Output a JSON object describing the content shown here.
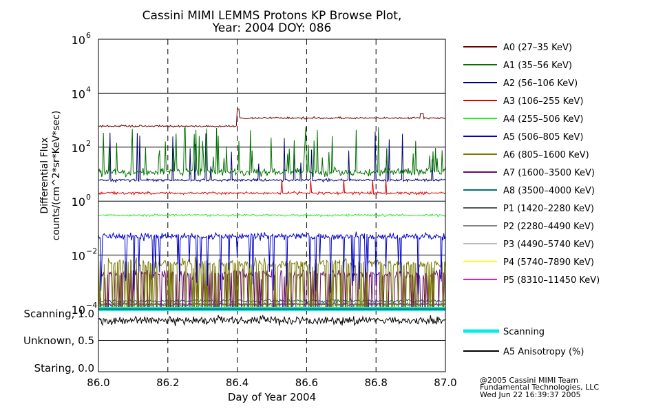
{
  "title_line1": "Cassini MIMI LEMMS Protons KP Browse Plot,",
  "title_line2": "Year: 2004 DOY: 086",
  "ylabel_line1": "Differential Flux",
  "ylabel_line2": "counts/(cm^2*sr*KeV*sec)",
  "xlabel": "Day of Year 2004",
  "credit_line1": "@2005 Cassini MIMI Team",
  "credit_line2": "Fundamental Technologies, LLC",
  "credit_line3": "Wed Jun 22 16:39:37 2005",
  "scan_labels": [
    "Scanning, 1.0",
    "Unknown, 0.5",
    "Staring, 0.0"
  ],
  "colors": {
    "background": "#ffffff",
    "axes": "#000000",
    "A0": "#6b0000",
    "A1": "#007000",
    "A2": "#000070",
    "A3": "#e00000",
    "A4": "#22ee22",
    "A5": "#0000cc",
    "A6": "#7a7a00",
    "A7": "#6b0a6b",
    "A8": "#007070",
    "P1": "#555555",
    "P2": "#808080",
    "P3": "#bbbbbb",
    "P4": "#ffff00",
    "P5": "#ff00ff",
    "scanning": "#00eeee",
    "anisotropy": "#000000"
  },
  "chart_data": {
    "type": "line",
    "title": "Cassini MIMI LEMMS Protons KP Browse Plot, Year: 2004 DOY: 086",
    "xlabel": "Day of Year 2004",
    "ylabel": "Differential Flux counts/(cm^2*sr*KeV*sec)",
    "xlim": [
      86.0,
      87.0
    ],
    "ylim": [
      0.0001,
      1000000
    ],
    "yscale": "log",
    "x_ticks": [
      "86.0",
      "86.2",
      "86.4",
      "86.6",
      "86.8",
      "87.0"
    ],
    "y_ticks": [
      {
        "base": "10",
        "exp": "6"
      },
      {
        "base": "10",
        "exp": "4"
      },
      {
        "base": "10",
        "exp": "2"
      },
      {
        "base": "10",
        "exp": "0"
      },
      {
        "base": "10",
        "exp": "−2"
      },
      {
        "base": "10",
        "exp": "−4"
      }
    ],
    "grid": true,
    "legend_position": "right",
    "series": [
      {
        "name": "A0 (27–35 KeV)",
        "key": "A0",
        "approx_level": 600,
        "notes": "jumps to ~1200 near 86.40, spike ~1800 near 86.93"
      },
      {
        "name": "A1 (35–56 KeV)",
        "key": "A1",
        "approx_level": 12,
        "notes": "bursty spikes up to ~500"
      },
      {
        "name": "A2 (56–106 KeV)",
        "key": "A2",
        "approx_level": 6
      },
      {
        "name": "A3 (106–255 KeV)",
        "key": "A3",
        "approx_level": 2
      },
      {
        "name": "A4 (255–506 KeV)",
        "key": "A4",
        "approx_level": 0.3
      },
      {
        "name": "A5 (506–805 KeV)",
        "key": "A5",
        "approx_level": 0.05
      },
      {
        "name": "A6 (805–1600 KeV)",
        "key": "A6",
        "approx_level": 0.005
      },
      {
        "name": "A7 (1600–3500 KeV)",
        "key": "A7",
        "approx_level": 0.002
      },
      {
        "name": "A8 (3500–4000 KeV)",
        "key": "A8",
        "approx_level": 0.0002
      },
      {
        "name": "P1 (1420–2280 KeV)",
        "key": "P1",
        "approx_level": 0.00015
      },
      {
        "name": "P2 (2280–4490 KeV)",
        "key": "P2",
        "approx_level": 0.00015
      },
      {
        "name": "P3 (4490–5740 KeV)",
        "key": "P3",
        "approx_level": 0.00015
      },
      {
        "name": "P4 (5740–7890 KeV)",
        "key": "P4",
        "approx_level": 0.00012
      },
      {
        "name": "P5 (8310–11450 KeV)",
        "key": "P5",
        "approx_level": 0.0001
      }
    ],
    "lower_panel": {
      "ylim": [
        0.0,
        1.0
      ],
      "series": [
        {
          "name": "Scanning",
          "key": "scanning",
          "value": 1.0
        },
        {
          "name": "A5 Anisotropy (%)",
          "key": "anisotropy",
          "approx_level": 0.82
        }
      ]
    }
  }
}
